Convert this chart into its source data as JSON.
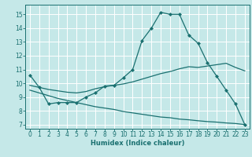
{
  "xlabel": "Humidex (Indice chaleur)",
  "bg_color": "#c5e8e8",
  "line_color": "#1a7070",
  "grid_color": "#ffffff",
  "xlim": [
    -0.5,
    23.5
  ],
  "ylim": [
    6.7,
    15.7
  ],
  "xticks": [
    0,
    1,
    2,
    3,
    4,
    5,
    6,
    7,
    8,
    9,
    10,
    11,
    12,
    13,
    14,
    15,
    16,
    17,
    18,
    19,
    20,
    21,
    22,
    23
  ],
  "yticks": [
    7,
    8,
    9,
    10,
    11,
    12,
    13,
    14,
    15
  ],
  "curve1_x": [
    0,
    1,
    2,
    3,
    4,
    5,
    6,
    7,
    8,
    9,
    10,
    11,
    12,
    13,
    14,
    15,
    16,
    17,
    18,
    19,
    20,
    21,
    22,
    23
  ],
  "curve1_y": [
    10.6,
    9.7,
    8.5,
    8.6,
    8.6,
    8.6,
    9.0,
    9.3,
    9.8,
    9.85,
    10.4,
    11.0,
    13.1,
    14.0,
    15.15,
    15.0,
    15.0,
    13.5,
    12.9,
    11.5,
    10.5,
    9.5,
    8.5,
    7.0
  ],
  "curve2_x": [
    0,
    1,
    2,
    3,
    4,
    5,
    6,
    7,
    8,
    9,
    10,
    11,
    12,
    13,
    14,
    15,
    16,
    17,
    18,
    19,
    20,
    21,
    22,
    23
  ],
  "curve2_y": [
    9.85,
    9.7,
    9.55,
    9.45,
    9.35,
    9.3,
    9.4,
    9.6,
    9.75,
    9.85,
    9.95,
    10.1,
    10.3,
    10.5,
    10.7,
    10.85,
    11.05,
    11.2,
    11.15,
    11.25,
    11.35,
    11.45,
    11.15,
    10.9
  ],
  "curve3_x": [
    0,
    1,
    2,
    3,
    4,
    5,
    6,
    7,
    8,
    9,
    10,
    11,
    12,
    13,
    14,
    15,
    16,
    17,
    18,
    19,
    20,
    21,
    22,
    23
  ],
  "curve3_y": [
    9.5,
    9.3,
    9.1,
    8.9,
    8.75,
    8.6,
    8.45,
    8.3,
    8.2,
    8.1,
    7.95,
    7.85,
    7.75,
    7.65,
    7.55,
    7.5,
    7.4,
    7.35,
    7.28,
    7.22,
    7.18,
    7.12,
    7.08,
    7.0
  ]
}
